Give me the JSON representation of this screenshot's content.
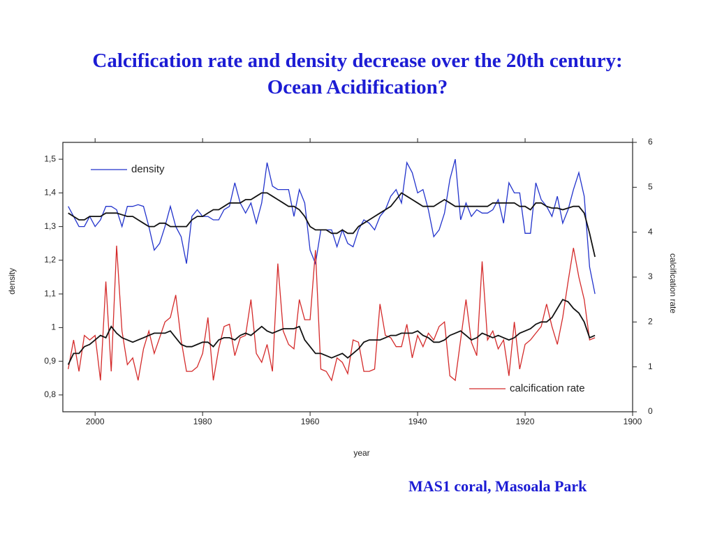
{
  "title": [
    "Calcification rate and density decrease over the 20th century:",
    "Ocean Acidification?"
  ],
  "caption": "MAS1 coral, Masoala Park",
  "chart_data": {
    "type": "line",
    "xlabel": "year",
    "ylabel": "density",
    "y2label": "calcification rate",
    "xlim": [
      2006,
      1900
    ],
    "xticks": [
      2000,
      1980,
      1960,
      1940,
      1920,
      1900
    ],
    "ylim": [
      0.75,
      1.55
    ],
    "yticks": [
      {
        "value": 0.8,
        "label": "0,8"
      },
      {
        "value": 0.9,
        "label": "0,9"
      },
      1,
      {
        "value": 1.1,
        "label": "1,1"
      },
      {
        "value": 1.2,
        "label": "1,2"
      },
      {
        "value": 1.3,
        "label": "1,3"
      },
      {
        "value": 1.4,
        "label": "1,4"
      },
      {
        "value": 1.5,
        "label": "1,5"
      }
    ],
    "y2lim": [
      0,
      6
    ],
    "y2ticks": [
      0,
      1,
      2,
      3,
      4,
      5,
      6
    ],
    "x": [
      2005,
      2004,
      2003,
      2002,
      2001,
      2000,
      1999,
      1998,
      1997,
      1996,
      1995,
      1994,
      1993,
      1992,
      1991,
      1990,
      1989,
      1988,
      1987,
      1986,
      1985,
      1984,
      1983,
      1982,
      1981,
      1980,
      1979,
      1978,
      1977,
      1976,
      1975,
      1974,
      1973,
      1972,
      1971,
      1970,
      1969,
      1968,
      1967,
      1966,
      1965,
      1964,
      1963,
      1962,
      1961,
      1960,
      1959,
      1958,
      1957,
      1956,
      1955,
      1954,
      1953,
      1952,
      1951,
      1950,
      1949,
      1948,
      1947,
      1946,
      1945,
      1944,
      1943,
      1942,
      1941,
      1940,
      1939,
      1938,
      1937,
      1936,
      1935,
      1934,
      1933,
      1932,
      1931,
      1930,
      1929,
      1928,
      1927,
      1926,
      1925,
      1924,
      1923,
      1922,
      1921,
      1920,
      1919,
      1918,
      1917,
      1916,
      1915,
      1914,
      1913,
      1912,
      1911,
      1910,
      1909,
      1908,
      1907
    ],
    "series": [
      {
        "name": "density",
        "color": "#2233cc",
        "values": [
          1.36,
          1.33,
          1.3,
          1.3,
          1.33,
          1.3,
          1.32,
          1.36,
          1.36,
          1.35,
          1.3,
          1.36,
          1.36,
          1.365,
          1.36,
          1.3,
          1.23,
          1.25,
          1.3,
          1.36,
          1.3,
          1.27,
          1.19,
          1.33,
          1.35,
          1.33,
          1.33,
          1.32,
          1.32,
          1.35,
          1.36,
          1.43,
          1.37,
          1.34,
          1.37,
          1.31,
          1.37,
          1.49,
          1.42,
          1.41,
          1.41,
          1.41,
          1.33,
          1.41,
          1.37,
          1.23,
          1.19,
          1.29,
          1.29,
          1.29,
          1.24,
          1.29,
          1.25,
          1.24,
          1.29,
          1.32,
          1.31,
          1.29,
          1.33,
          1.35,
          1.39,
          1.41,
          1.37,
          1.49,
          1.46,
          1.4,
          1.41,
          1.35,
          1.27,
          1.29,
          1.34,
          1.44,
          1.5,
          1.32,
          1.37,
          1.33,
          1.35,
          1.34,
          1.34,
          1.35,
          1.38,
          1.31,
          1.43,
          1.4,
          1.4,
          1.28,
          1.28,
          1.43,
          1.38,
          1.36,
          1.33,
          1.39,
          1.31,
          1.35,
          1.41,
          1.46,
          1.39,
          1.18,
          1.1
        ]
      },
      {
        "color": "#111111",
        "values": [
          1.34,
          1.33,
          1.32,
          1.32,
          1.33,
          1.33,
          1.33,
          1.34,
          1.34,
          1.34,
          1.335,
          1.33,
          1.33,
          1.32,
          1.31,
          1.3,
          1.3,
          1.31,
          1.31,
          1.3,
          1.3,
          1.3,
          1.3,
          1.32,
          1.33,
          1.33,
          1.34,
          1.35,
          1.35,
          1.36,
          1.37,
          1.37,
          1.37,
          1.38,
          1.38,
          1.39,
          1.4,
          1.4,
          1.39,
          1.38,
          1.37,
          1.36,
          1.36,
          1.35,
          1.33,
          1.3,
          1.29,
          1.29,
          1.29,
          1.28,
          1.28,
          1.29,
          1.28,
          1.28,
          1.3,
          1.31,
          1.32,
          1.33,
          1.34,
          1.35,
          1.36,
          1.38,
          1.4,
          1.39,
          1.38,
          1.37,
          1.36,
          1.36,
          1.36,
          1.37,
          1.38,
          1.37,
          1.36,
          1.36,
          1.36,
          1.36,
          1.36,
          1.36,
          1.36,
          1.37,
          1.37,
          1.37,
          1.37,
          1.37,
          1.36,
          1.36,
          1.35,
          1.37,
          1.37,
          1.36,
          1.355,
          1.355,
          1.35,
          1.355,
          1.36,
          1.36,
          1.34,
          1.28,
          1.21
        ]
      },
      {
        "name": "calcification rate",
        "color": "#d42a2a",
        "axis": "y2",
        "values": [
          0.95,
          1.6,
          0.9,
          1.7,
          1.6,
          1.7,
          0.7,
          2.9,
          0.9,
          3.7,
          1.8,
          1.05,
          1.2,
          0.7,
          1.4,
          1.8,
          1.3,
          1.65,
          2.0,
          2.1,
          2.6,
          1.6,
          0.9,
          0.9,
          1.0,
          1.3,
          2.1,
          0.7,
          1.4,
          1.9,
          1.95,
          1.25,
          1.65,
          1.7,
          2.5,
          1.3,
          1.1,
          1.5,
          0.9,
          3.3,
          1.8,
          1.5,
          1.4,
          2.5,
          2.05,
          2.05,
          3.6,
          0.95,
          0.9,
          0.7,
          1.2,
          1.1,
          0.85,
          1.6,
          1.55,
          0.9,
          0.9,
          0.95,
          2.4,
          1.7,
          1.65,
          1.45,
          1.45,
          1.95,
          1.2,
          1.7,
          1.45,
          1.75,
          1.6,
          1.9,
          2.0,
          0.8,
          0.7,
          1.6,
          2.5,
          1.55,
          1.25,
          3.35,
          1.6,
          1.8,
          1.4,
          1.6,
          0.8,
          2.0,
          0.95,
          1.5,
          1.6,
          1.75,
          1.9,
          2.4,
          1.9,
          1.5,
          2.1,
          2.9,
          3.65,
          3.0,
          2.5,
          1.6,
          1.65
        ]
      },
      {
        "color": "#111111",
        "axis": "y2",
        "values": [
          1.05,
          1.3,
          1.3,
          1.45,
          1.5,
          1.6,
          1.7,
          1.65,
          1.9,
          1.75,
          1.65,
          1.6,
          1.55,
          1.6,
          1.65,
          1.7,
          1.75,
          1.75,
          1.75,
          1.8,
          1.65,
          1.5,
          1.45,
          1.45,
          1.5,
          1.55,
          1.55,
          1.45,
          1.6,
          1.65,
          1.65,
          1.6,
          1.7,
          1.75,
          1.7,
          1.8,
          1.9,
          1.8,
          1.75,
          1.8,
          1.85,
          1.85,
          1.85,
          1.9,
          1.6,
          1.45,
          1.3,
          1.3,
          1.25,
          1.2,
          1.25,
          1.3,
          1.2,
          1.3,
          1.4,
          1.55,
          1.6,
          1.6,
          1.6,
          1.65,
          1.7,
          1.7,
          1.75,
          1.75,
          1.75,
          1.8,
          1.7,
          1.65,
          1.55,
          1.55,
          1.6,
          1.7,
          1.75,
          1.8,
          1.7,
          1.6,
          1.65,
          1.75,
          1.7,
          1.65,
          1.7,
          1.65,
          1.6,
          1.65,
          1.75,
          1.8,
          1.85,
          1.95,
          2.0,
          2.0,
          2.1,
          2.3,
          2.5,
          2.45,
          2.3,
          2.2,
          2.0,
          1.65,
          1.7
        ]
      }
    ]
  }
}
